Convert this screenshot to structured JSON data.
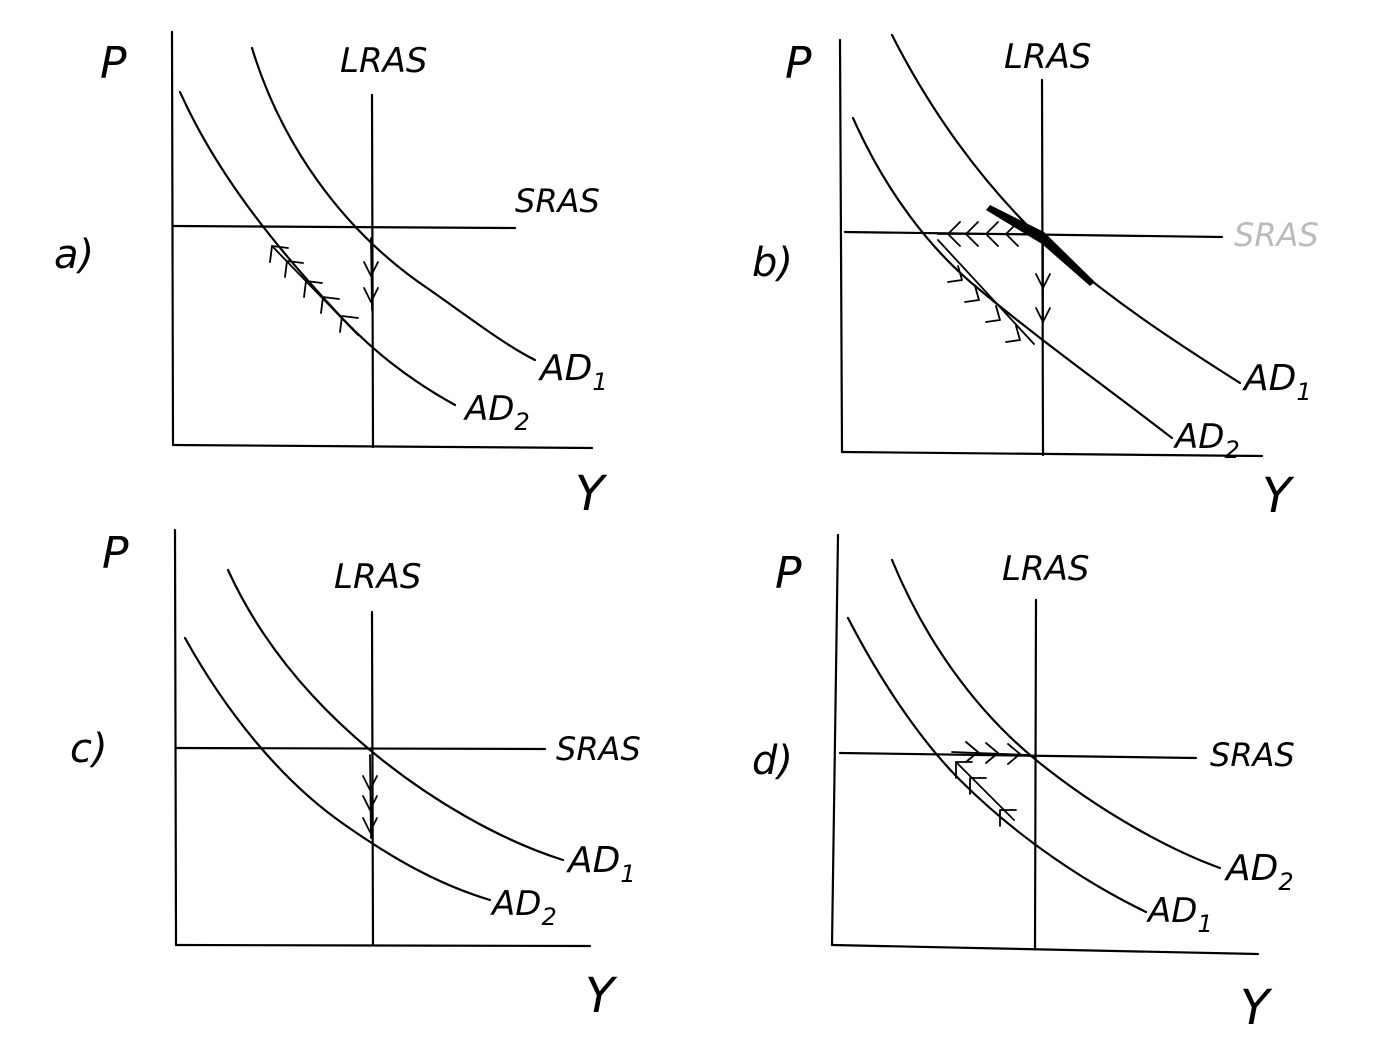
{
  "panels": [
    {
      "id": "a",
      "label": "a)",
      "y_label": "P",
      "x_label": "Y",
      "lras_label": "LRAS",
      "sras_label": "SRAS",
      "upper_curve_label": "AD1",
      "lower_curve_label": "AD2",
      "upper_label_main": "AD",
      "upper_label_sub": "1",
      "lower_label_main": "AD",
      "lower_label_sub": "2"
    },
    {
      "id": "b",
      "label": "b)",
      "y_label": "P",
      "x_label": "Y",
      "lras_label": "LRAS",
      "sras_label": "SRAS",
      "upper_curve_label": "AD1",
      "lower_curve_label": "AD2",
      "upper_label_main": "AD",
      "upper_label_sub": "1",
      "lower_label_main": "AD",
      "lower_label_sub": "2"
    },
    {
      "id": "c",
      "label": "c)",
      "y_label": "P",
      "x_label": "Y",
      "lras_label": "LRAS",
      "sras_label": "SRAS",
      "upper_curve_label": "AD1",
      "lower_curve_label": "AD2",
      "upper_label_main": "AD",
      "upper_label_sub": "1",
      "lower_label_main": "AD",
      "lower_label_sub": "2"
    },
    {
      "id": "d",
      "label": "d)",
      "y_label": "P",
      "x_label": "Y",
      "lras_label": "LRAS",
      "sras_label": "SRAS",
      "upper_curve_label": "AD2",
      "lower_curve_label": "AD1",
      "upper_label_main": "AD",
      "upper_label_sub": "2",
      "lower_label_main": "AD",
      "lower_label_sub": "1"
    }
  ]
}
